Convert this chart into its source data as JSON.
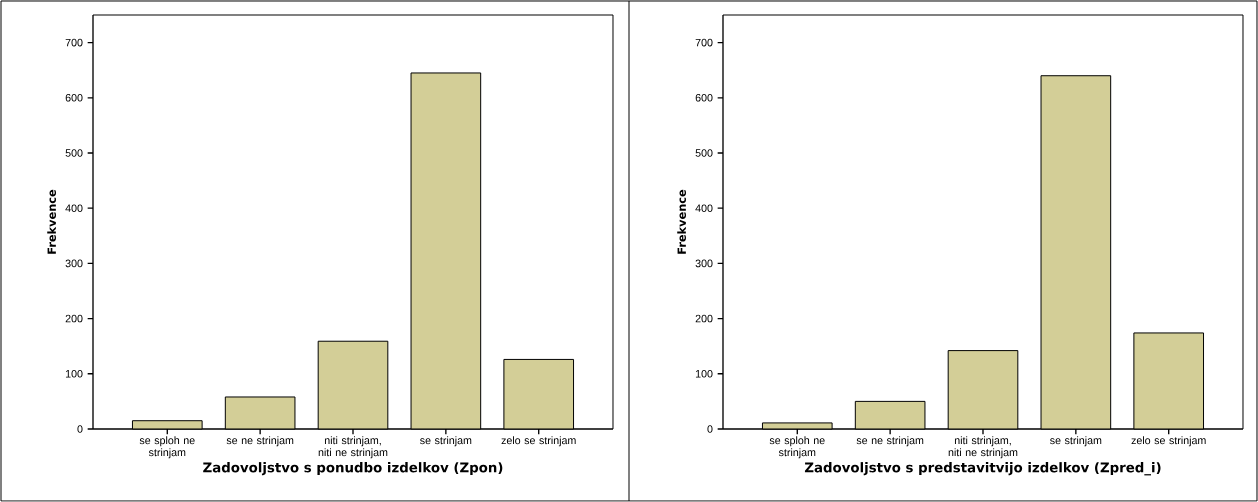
{
  "chart_data": [
    {
      "type": "bar",
      "xlabel": "Zadovoljstvo s ponudbo izdelkov (Zpon)",
      "ylabel": "Frekvence",
      "categories": [
        "se sploh ne strinjam",
        "se ne strinjam",
        "niti strinjam, niti ne strinjam",
        "se strinjam",
        "zelo se strinjam"
      ],
      "values": [
        15,
        58,
        159,
        645,
        126
      ],
      "color": "#d3ce97",
      "ylim": [
        0,
        750
      ],
      "yticks": [
        0,
        100,
        200,
        300,
        400,
        500,
        600,
        700
      ]
    },
    {
      "type": "bar",
      "xlabel": "Zadovoljstvo s predstavitvijo izdelkov (Zpred_i)",
      "ylabel": "Frekvence",
      "categories": [
        "se sploh ne strinjam",
        "se ne strinjam",
        "niti strinjam, niti ne strinjam",
        "se strinjam",
        "zelo se strinjam"
      ],
      "values": [
        11,
        50,
        142,
        640,
        174
      ],
      "color": "#d3ce97",
      "ylim": [
        0,
        750
      ],
      "yticks": [
        0,
        100,
        200,
        300,
        400,
        500,
        600,
        700
      ]
    }
  ]
}
